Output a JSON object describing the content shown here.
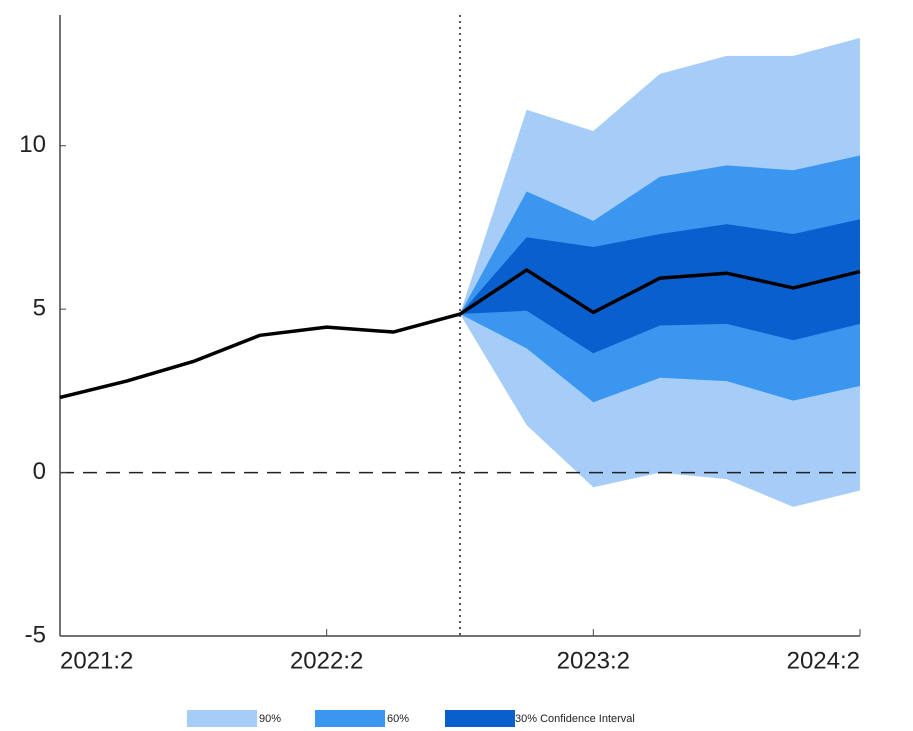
{
  "chart_data": {
    "type": "fan",
    "categories": [
      "2021:2",
      null,
      null,
      null,
      "2022:2",
      null,
      null,
      null,
      "2023:2",
      null,
      null,
      null,
      "2024:2"
    ],
    "line": {
      "color": "#000000",
      "values": [
        2.3,
        2.8,
        3.4,
        4.2,
        4.45,
        4.3,
        4.85,
        6.2,
        4.9,
        5.95,
        6.1,
        5.65,
        6.15
      ]
    },
    "series": [
      {
        "name": "90%",
        "color": "#a6cdf7",
        "upper": [
          null,
          null,
          null,
          null,
          null,
          null,
          4.85,
          11.1,
          10.45,
          12.2,
          12.75,
          12.75,
          13.3
        ],
        "lower": [
          null,
          null,
          null,
          null,
          null,
          null,
          4.85,
          1.45,
          -0.45,
          0,
          -0.2,
          -1.05,
          -0.55
        ]
      },
      {
        "name": "60%",
        "color": "#3a96ef",
        "upper": [
          null,
          null,
          null,
          null,
          null,
          null,
          4.85,
          8.6,
          7.7,
          9.05,
          9.4,
          9.25,
          9.7
        ],
        "lower": [
          null,
          null,
          null,
          null,
          null,
          null,
          4.85,
          3.8,
          2.15,
          2.9,
          2.8,
          2.2,
          2.65
        ]
      },
      {
        "name": "30% Confidence Interval",
        "color": "#0a5fcf",
        "upper": [
          null,
          null,
          null,
          null,
          null,
          null,
          4.85,
          7.2,
          6.9,
          7.3,
          7.6,
          7.3,
          7.75
        ],
        "lower": [
          null,
          null,
          null,
          null,
          null,
          null,
          4.85,
          4.95,
          3.65,
          4.5,
          4.55,
          4.05,
          4.55
        ]
      }
    ],
    "ylim": [
      -5,
      14
    ],
    "yticks": [
      -5,
      0,
      5,
      10
    ],
    "zero_line": true,
    "legend": "bottom"
  }
}
